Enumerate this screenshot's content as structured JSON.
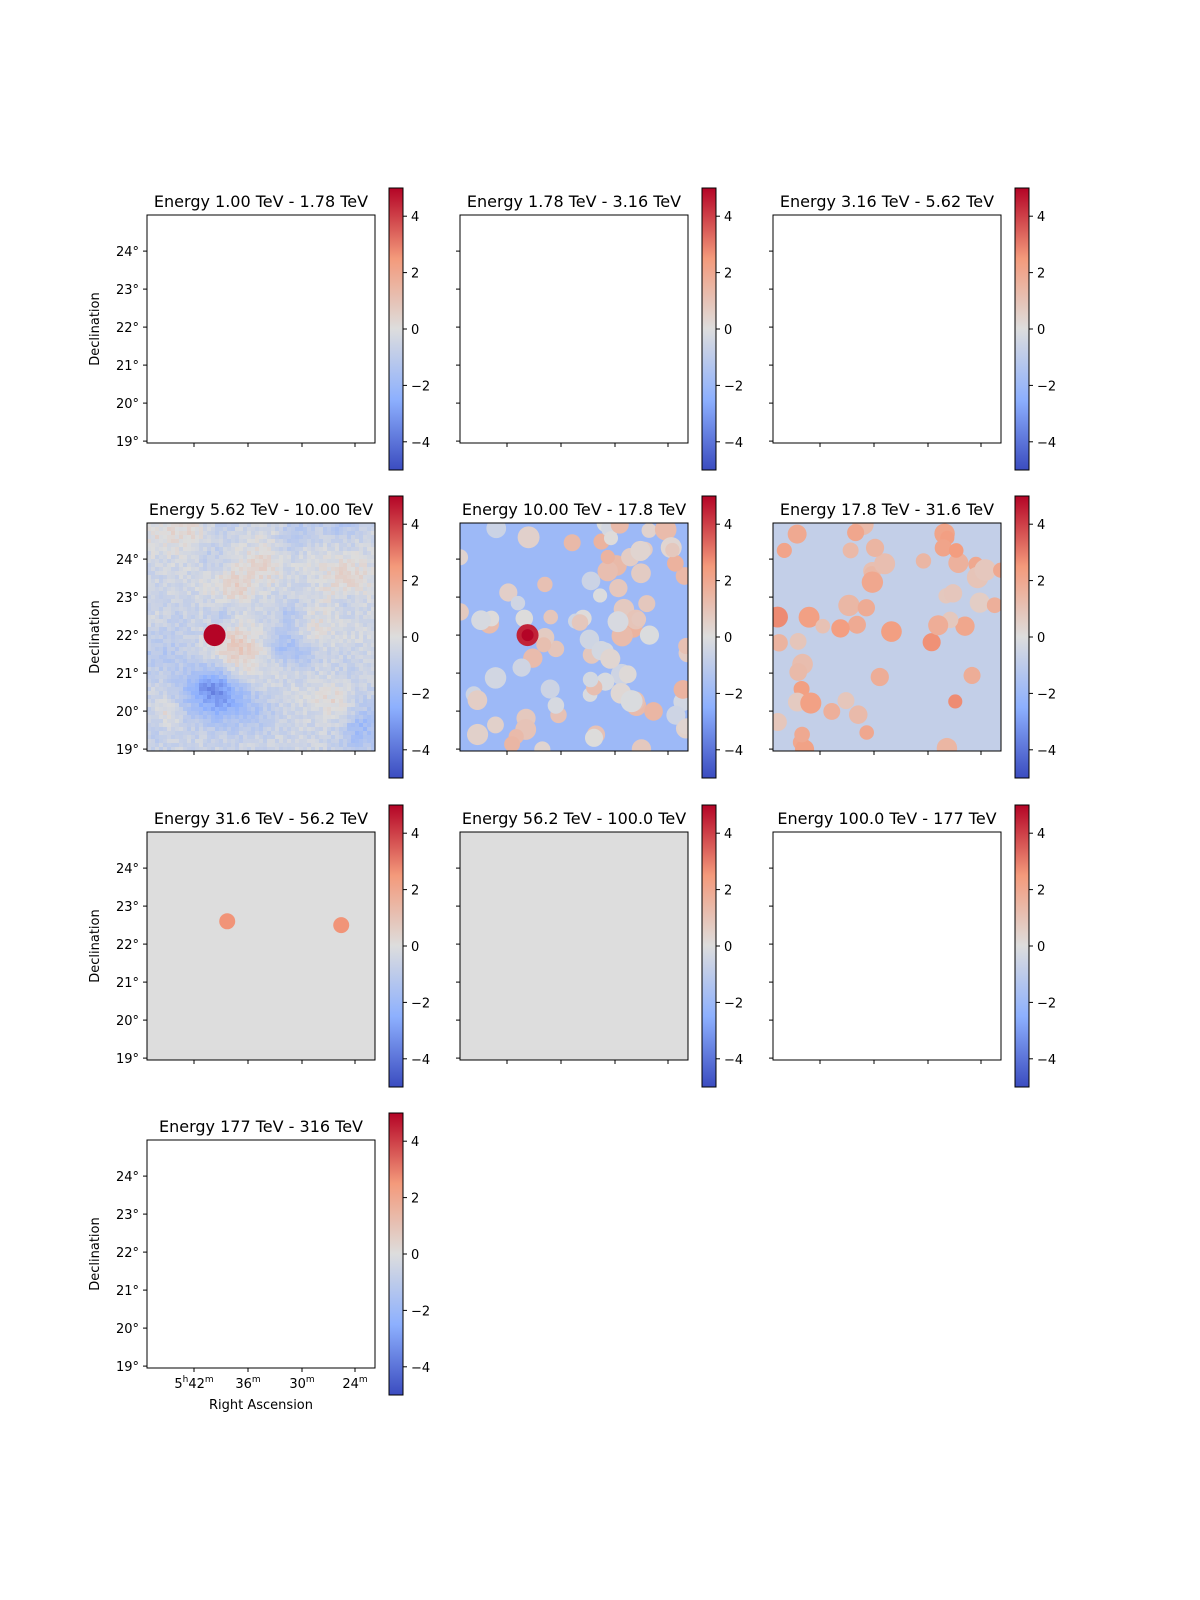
{
  "colorbar": {
    "cmap": "coolwarm",
    "range": [
      -5,
      5
    ],
    "ticks": [
      {
        "value": 4,
        "label": "4"
      },
      {
        "value": 2,
        "label": "2"
      },
      {
        "value": 0,
        "label": "0"
      },
      {
        "value": -2,
        "label": "−2"
      },
      {
        "value": -4,
        "label": "−4"
      }
    ]
  },
  "axes_labels": {
    "ylabel": "Declination",
    "xlabel": "Right Ascension",
    "dec_ticks": [
      "24°",
      "23°",
      "22°",
      "21°",
      "20°",
      "19°"
    ],
    "ra_ticks": [
      {
        "main": "5",
        "sup1": "h",
        "main2": "42",
        "sup2": "m"
      },
      {
        "main": "36",
        "sup1": "m",
        "main2": "",
        "sup2": ""
      },
      {
        "main": "30",
        "sup1": "m",
        "main2": "",
        "sup2": ""
      },
      {
        "main": "24",
        "sup1": "m",
        "main2": "",
        "sup2": ""
      }
    ]
  },
  "chart_data": [
    {
      "type": "heatmap",
      "title": "Energy 1.00 TeV - 1.78 TeV",
      "fill": "empty",
      "peaks": []
    },
    {
      "type": "heatmap",
      "title": "Energy 1.78 TeV - 3.16 TeV",
      "fill": "empty",
      "peaks": []
    },
    {
      "type": "heatmap",
      "title": "Energy 3.16 TeV - 5.62 TeV",
      "fill": "empty",
      "peaks": []
    },
    {
      "type": "heatmap",
      "title": "Energy 5.62 TeV - 10.00 TeV",
      "fill": "noise",
      "background": -0.5,
      "noise_amplitude": 2.0,
      "peaks": [
        {
          "ra": 84.6,
          "dec": 22.0,
          "value": 5.0
        }
      ]
    },
    {
      "type": "heatmap",
      "title": "Energy 10.00 TeV - 17.8 TeV",
      "fill": "blobs",
      "background": -2.0,
      "blob_count": 90,
      "peaks": [
        {
          "ra": 84.6,
          "dec": 22.0,
          "value": 4.5
        }
      ]
    },
    {
      "type": "heatmap",
      "title": "Energy 17.8 TeV - 31.6 TeV",
      "fill": "blobs",
      "background": -0.8,
      "blob_count": 55,
      "peaks": []
    },
    {
      "type": "heatmap",
      "title": "Energy 31.6 TeV - 56.2 TeV",
      "fill": "flat",
      "background": 0.0,
      "peaks": [
        {
          "ra": 84.3,
          "dec": 22.6,
          "value": 2.6
        },
        {
          "ra": 81.6,
          "dec": 22.5,
          "value": 2.6
        }
      ]
    },
    {
      "type": "heatmap",
      "title": "Energy 56.2 TeV - 100.0 TeV",
      "fill": "flat",
      "background": 0.0,
      "peaks": []
    },
    {
      "type": "heatmap",
      "title": "Energy 100.0 TeV - 177 TeV",
      "fill": "empty",
      "peaks": []
    },
    {
      "type": "heatmap",
      "title": "Energy 177 TeV - 316 TeV",
      "fill": "empty",
      "peaks": []
    }
  ]
}
